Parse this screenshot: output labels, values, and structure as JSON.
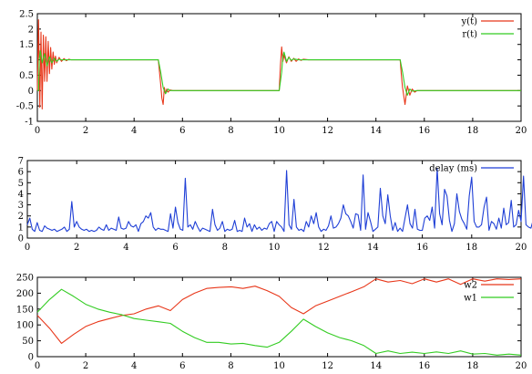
{
  "chart_data": [
    {
      "type": "line",
      "title": "",
      "xlabel": "",
      "ylabel": "",
      "xlim": [
        0,
        20
      ],
      "ylim": [
        -1,
        2.5
      ],
      "xticks": [
        0,
        2,
        4,
        6,
        8,
        10,
        12,
        14,
        16,
        18,
        20
      ],
      "yticks": [
        -1,
        -0.5,
        0,
        0.5,
        1,
        1.5,
        2,
        2.5
      ],
      "legend": "top-right",
      "series": [
        {
          "name": "y(t)",
          "color": "#e8371a",
          "x": [
            0,
            0.05,
            0.1,
            0.15,
            0.2,
            0.25,
            0.3,
            0.35,
            0.4,
            0.45,
            0.5,
            0.55,
            0.6,
            0.65,
            0.7,
            0.75,
            0.8,
            0.9,
            1.0,
            1.1,
            1.2,
            1.3,
            1.4,
            1.5,
            2.0,
            4.9,
            5.0,
            5.05,
            5.1,
            5.15,
            5.2,
            5.25,
            5.3,
            5.35,
            5.4,
            5.5,
            5.6,
            5.7,
            6.0,
            9.9,
            10.0,
            10.05,
            10.1,
            10.15,
            10.2,
            10.3,
            10.4,
            10.5,
            10.6,
            10.7,
            10.8,
            10.9,
            11.0,
            11.2,
            11.5,
            14.9,
            15.0,
            15.05,
            15.1,
            15.2,
            15.3,
            15.4,
            15.5,
            15.6,
            15.7,
            15.8,
            16.0,
            20.0
          ],
          "values": [
            0,
            2.3,
            -0.55,
            1.9,
            -0.6,
            1.8,
            0.3,
            1.75,
            0.3,
            1.6,
            0.55,
            1.4,
            0.7,
            1.25,
            0.85,
            1.12,
            0.9,
            1.08,
            0.95,
            1.04,
            0.97,
            1.02,
            1.0,
            1.0,
            1.0,
            1.0,
            1.0,
            0.6,
            0.2,
            -0.25,
            -0.45,
            0.1,
            -0.1,
            0.05,
            -0.05,
            0.02,
            0.0,
            0.0,
            0.0,
            0.0,
            0.0,
            0.8,
            1.42,
            0.95,
            1.15,
            0.9,
            1.1,
            0.95,
            1.05,
            0.95,
            1.03,
            0.98,
            1.02,
            1.0,
            1.0,
            1.0,
            1.0,
            0.5,
            0.1,
            -0.45,
            0.15,
            -0.15,
            0.05,
            -0.05,
            0.0,
            0.0,
            0.0,
            0.0
          ]
        },
        {
          "name": "r(t)",
          "color": "#33cc22",
          "x": [
            0,
            0.05,
            0.08,
            0.12,
            0.2,
            0.3,
            0.4,
            0.5,
            0.6,
            0.7,
            0.8,
            0.9,
            1.0,
            1.2,
            1.5,
            2.0,
            4.9,
            5.0,
            5.1,
            5.2,
            5.3,
            5.4,
            5.5,
            5.6,
            6.0,
            9.9,
            10.0,
            10.1,
            10.15,
            10.2,
            10.3,
            10.4,
            10.5,
            10.6,
            10.8,
            11.0,
            11.5,
            14.9,
            15.0,
            15.1,
            15.2,
            15.3,
            15.4,
            15.5,
            15.7,
            16.0,
            20.0
          ],
          "values": [
            0,
            0,
            1.0,
            1.3,
            0.9,
            1.2,
            0.8,
            1.1,
            0.9,
            1.05,
            0.95,
            1.02,
            1.0,
            1.0,
            1.0,
            1.0,
            1.0,
            1.0,
            0.6,
            0.1,
            -0.1,
            0.05,
            0.0,
            0.0,
            0.0,
            0.0,
            0.0,
            0.6,
            1.1,
            1.25,
            0.95,
            1.08,
            0.98,
            1.03,
            1.0,
            1.0,
            1.0,
            1.0,
            1.0,
            0.6,
            0.1,
            -0.15,
            0.05,
            -0.02,
            0.0,
            0.0,
            0.0
          ]
        }
      ]
    },
    {
      "type": "line",
      "title": "",
      "xlabel": "",
      "ylabel": "",
      "xlim": [
        0,
        20
      ],
      "ylim": [
        0,
        7
      ],
      "xticks": [
        0,
        2,
        4,
        6,
        8,
        10,
        12,
        14,
        16,
        18,
        20
      ],
      "yticks": [
        0,
        1,
        2,
        3,
        4,
        5,
        6,
        7
      ],
      "legend": "top-right",
      "series": [
        {
          "name": "delay (ms)",
          "color": "#1f3fd6",
          "dt": 0.1,
          "values": [
            1.2,
            1.8,
            0.8,
            0.6,
            1.4,
            0.7,
            0.6,
            1.1,
            0.9,
            0.8,
            0.7,
            0.8,
            0.6,
            0.7,
            0.8,
            1.0,
            0.6,
            0.8,
            3.3,
            1.0,
            1.5,
            1.0,
            0.8,
            0.7,
            0.8,
            0.6,
            0.7,
            0.6,
            0.7,
            1.0,
            0.8,
            0.7,
            1.2,
            0.7,
            0.9,
            0.8,
            0.7,
            1.9,
            0.9,
            0.8,
            0.9,
            1.5,
            1.1,
            1.0,
            1.2,
            0.6,
            1.3,
            1.5,
            2.0,
            1.8,
            2.3,
            1.0,
            0.7,
            0.9,
            0.8,
            0.8,
            0.7,
            0.6,
            2.2,
            0.9,
            2.8,
            1.4,
            0.8,
            0.7,
            5.4,
            1.0,
            1.2,
            0.8,
            1.5,
            1.0,
            0.6,
            0.9,
            0.8,
            0.7,
            0.6,
            2.6,
            1.2,
            0.7,
            0.9,
            1.5,
            0.6,
            0.8,
            0.7,
            0.8,
            1.6,
            0.6,
            0.7,
            0.6,
            1.8,
            1.0,
            1.3,
            0.6,
            1.2,
            0.8,
            1.0,
            0.7,
            0.9,
            0.8,
            1.3,
            1.5,
            0.6,
            1.5,
            1.2,
            1.0,
            0.6,
            6.1,
            1.2,
            0.8,
            3.5,
            1.0,
            0.7,
            0.8,
            0.6,
            1.5,
            1.0,
            2.0,
            1.3,
            2.3,
            1.0,
            0.6,
            0.8,
            0.7,
            1.1,
            2.0,
            0.9,
            1.0,
            1.3,
            1.8,
            3.0,
            2.2,
            2.0,
            1.5,
            0.9,
            2.2,
            2.1,
            0.7,
            5.7,
            0.8,
            2.3,
            1.5,
            0.6,
            0.8,
            1.0,
            4.5,
            2.0,
            1.3,
            3.9,
            2.0,
            0.7,
            1.4,
            0.6,
            0.9,
            0.6,
            1.8,
            3.0,
            1.3,
            0.9,
            2.6,
            0.8,
            0.7,
            0.7,
            1.8,
            2.0,
            1.6,
            2.8,
            0.9,
            6.3,
            2.2,
            1.2,
            4.4,
            3.8,
            1.6,
            0.6,
            1.3,
            4.0,
            2.4,
            1.7,
            1.3,
            0.8,
            3.8,
            5.5,
            1.5,
            1.0,
            1.0,
            1.2,
            2.8,
            3.7,
            0.7,
            1.5,
            1.3,
            0.8,
            1.8,
            0.9,
            2.7,
            1.2,
            1.4,
            3.4,
            1.0,
            1.2,
            2.5,
            1.5,
            5.6,
            1.2,
            1.0,
            0.9,
            1.7,
            0.6,
            1.2,
            2.0,
            1.6,
            1.4,
            1.0,
            0.9,
            1.8,
            1.4,
            2.9,
            1.0,
            3.5,
            1.7,
            1.4,
            1.1,
            2.0,
            1.6,
            1.8,
            0.6,
            1.8,
            1.3,
            0.9,
            1.5,
            2.0,
            1.2,
            3.4,
            1.6,
            1.5,
            0.7,
            1.9,
            1.3,
            1.3,
            3.1,
            1.1,
            1.5,
            0.8,
            3.2,
            1.4,
            1.9,
            5.8,
            2.8,
            1.3,
            4.1,
            1.4,
            2.4,
            3.7,
            3.2,
            3.0,
            4.8,
            2.0,
            1.8,
            4.2,
            1.2,
            2.6,
            2.8,
            1.4,
            3.4,
            2.7,
            1.6,
            2.6,
            4.0,
            1.6,
            4.0,
            2.4
          ]
        }
      ]
    },
    {
      "type": "line",
      "title": "",
      "xlabel": "",
      "ylabel": "",
      "xlim": [
        0,
        20
      ],
      "ylim": [
        0,
        250
      ],
      "xticks": [
        0,
        2,
        4,
        6,
        8,
        10,
        12,
        14,
        16,
        18,
        20
      ],
      "yticks": [
        0,
        50,
        100,
        150,
        200,
        250
      ],
      "legend": "top-right",
      "series": [
        {
          "name": "w2",
          "color": "#e8371a",
          "x": [
            0,
            0.5,
            1.0,
            1.5,
            2.0,
            2.5,
            3.0,
            3.5,
            4.0,
            4.5,
            5.0,
            5.5,
            6.0,
            6.5,
            7.0,
            7.5,
            8.0,
            8.5,
            9.0,
            9.5,
            10.0,
            10.5,
            11.0,
            11.5,
            12.0,
            12.5,
            13.0,
            13.5,
            14.0,
            14.5,
            15.0,
            15.5,
            16.0,
            16.5,
            17.0,
            17.5,
            18.0,
            18.5,
            19.0,
            19.5,
            20.0
          ],
          "values": [
            130,
            90,
            42,
            70,
            95,
            110,
            120,
            130,
            135,
            150,
            160,
            145,
            180,
            200,
            215,
            218,
            220,
            215,
            222,
            208,
            190,
            155,
            135,
            160,
            175,
            190,
            205,
            220,
            245,
            235,
            240,
            230,
            245,
            235,
            245,
            228,
            245,
            238,
            245,
            243,
            245
          ]
        },
        {
          "name": "w1",
          "color": "#33cc22",
          "x": [
            0,
            0.5,
            1.0,
            1.5,
            2.0,
            2.5,
            3.0,
            3.5,
            4.0,
            4.5,
            5.0,
            5.5,
            6.0,
            6.5,
            7.0,
            7.5,
            8.0,
            8.5,
            9.0,
            9.5,
            10.0,
            10.5,
            11.0,
            11.5,
            12.0,
            12.5,
            13.0,
            13.5,
            14.0,
            14.5,
            15.0,
            15.5,
            16.0,
            16.5,
            17.0,
            17.5,
            18.0,
            18.5,
            19.0,
            19.5,
            20.0
          ],
          "values": [
            140,
            180,
            212,
            190,
            165,
            150,
            140,
            132,
            120,
            115,
            110,
            105,
            80,
            60,
            45,
            45,
            40,
            42,
            35,
            30,
            45,
            80,
            118,
            95,
            75,
            60,
            50,
            35,
            10,
            18,
            10,
            14,
            10,
            15,
            10,
            18,
            8,
            10,
            5,
            8,
            5
          ]
        }
      ]
    }
  ]
}
